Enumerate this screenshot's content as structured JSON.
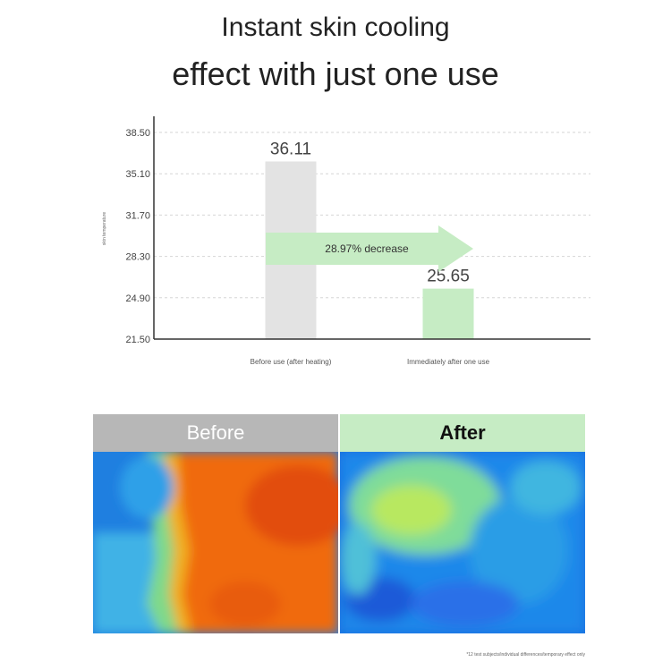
{
  "headline": {
    "line1": "Instant skin cooling",
    "line2": "effect with just one use"
  },
  "chart_data": {
    "type": "bar",
    "categories": [
      "Before use (after heating)",
      "Immediately after one use"
    ],
    "values": [
      36.11,
      25.65
    ],
    "value_labels": [
      "36.11",
      "25.65"
    ],
    "ylabel": "skin temperature",
    "ylim": [
      21.5,
      38.5
    ],
    "yticks": [
      "38.50",
      "35.10",
      "31.70",
      "28.30",
      "24.90",
      "21.50"
    ],
    "grid": true,
    "bar_colors": [
      "#e3e3e3",
      "#c6ecc4"
    ],
    "annotation": "28.97% decrease",
    "annotation_color": "#c6ecc4"
  },
  "panels": {
    "before_label": "Before",
    "after_label": "After"
  },
  "footnote": "*12 test subjects/individual differences/temporary effect only"
}
